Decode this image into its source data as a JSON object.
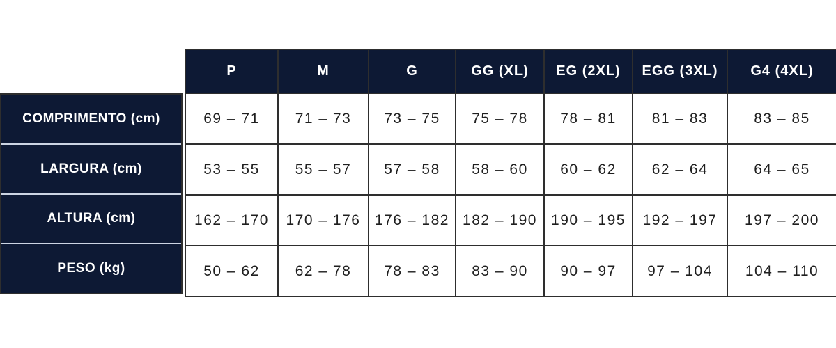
{
  "colors": {
    "navy": "#0d1934",
    "cell_border": "#2e2e2e",
    "label_separator": "#ccd4e3",
    "value_text": "#1f1f1f",
    "header_text": "#ffffff"
  },
  "chart_data": {
    "type": "table",
    "title": "",
    "columns": [
      "P",
      "M",
      "G",
      "GG (XL)",
      "EG (2XL)",
      "EGG (3XL)",
      "G4 (4XL)"
    ],
    "rows": [
      {
        "label": "COMPRIMENTO (cm)",
        "values": [
          "69 – 71",
          "71 – 73",
          "73 – 75",
          "75 – 78",
          "78 – 81",
          "81 – 83",
          "83 – 85"
        ]
      },
      {
        "label": "LARGURA (cm)",
        "values": [
          "53 – 55",
          "55 – 57",
          "57 – 58",
          "58 – 60",
          "60 – 62",
          "62 – 64",
          "64 – 65"
        ]
      },
      {
        "label": "ALTURA (cm)",
        "values": [
          "162 – 170",
          "170 – 176",
          "176 – 182",
          "182 – 190",
          "190 – 195",
          "192 – 197",
          "197 – 200"
        ]
      },
      {
        "label": "PESO (kg)",
        "values": [
          "50 – 62",
          "62 – 78",
          "78 – 83",
          "83 – 90",
          "90 – 97",
          "97 – 104",
          "104 – 110"
        ]
      }
    ],
    "layout": {
      "legend": "none",
      "grid": "solid-borders",
      "header_position": "top-and-left"
    }
  }
}
